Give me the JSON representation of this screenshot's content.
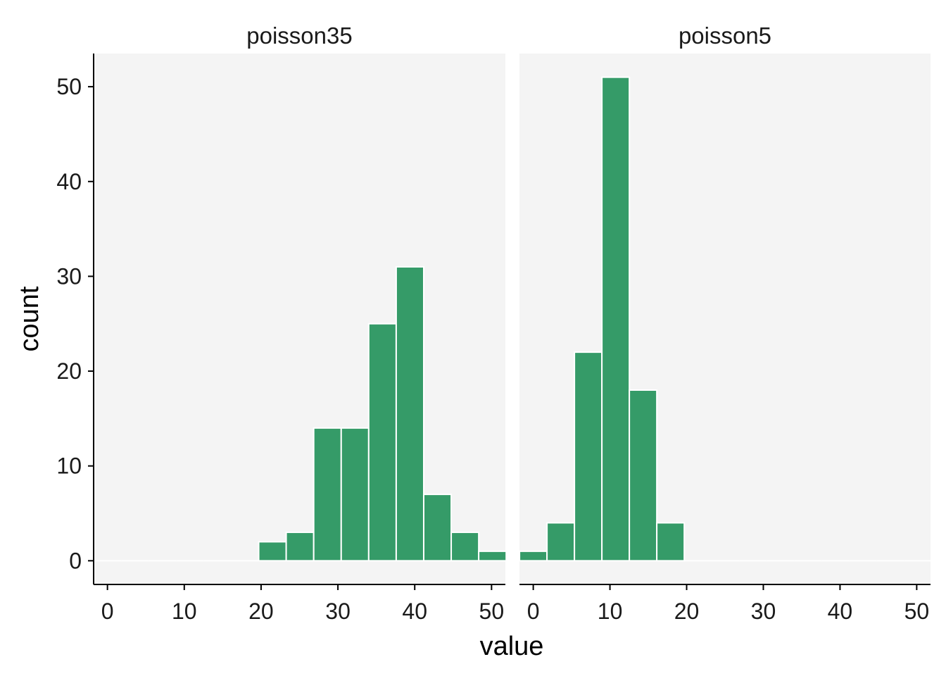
{
  "chart_data": {
    "type": "bar",
    "chart_kind": "histogram (faceted)",
    "xlabel": "value",
    "ylabel": "count",
    "xlim": [
      -1.8,
      51.8
    ],
    "ylim": [
      -2.5,
      53.5
    ],
    "x_ticks": [
      0,
      10,
      20,
      30,
      40,
      50
    ],
    "y_ticks": [
      0,
      10,
      20,
      30,
      40,
      50
    ],
    "bin_width": 3.58,
    "grid": false,
    "colors": {
      "bar_fill": "#359b68",
      "bar_outline": "#ffffff",
      "panel_background": "#f4f4f4"
    },
    "facets": [
      {
        "name": "poisson35",
        "bins": [
          {
            "x": 0.0,
            "count": 0
          },
          {
            "x": 3.58,
            "count": 0
          },
          {
            "x": 7.16,
            "count": 0
          },
          {
            "x": 10.74,
            "count": 0
          },
          {
            "x": 14.32,
            "count": 0
          },
          {
            "x": 17.9,
            "count": 0
          },
          {
            "x": 21.48,
            "count": 2
          },
          {
            "x": 25.06,
            "count": 3
          },
          {
            "x": 28.64,
            "count": 14
          },
          {
            "x": 32.22,
            "count": 14
          },
          {
            "x": 35.8,
            "count": 25
          },
          {
            "x": 39.38,
            "count": 31
          },
          {
            "x": 42.96,
            "count": 7
          },
          {
            "x": 46.54,
            "count": 3
          },
          {
            "x": 50.12,
            "count": 1
          }
        ]
      },
      {
        "name": "poisson5",
        "bins": [
          {
            "x": 0.0,
            "count": 1
          },
          {
            "x": 3.58,
            "count": 4
          },
          {
            "x": 7.16,
            "count": 22
          },
          {
            "x": 10.74,
            "count": 51
          },
          {
            "x": 14.32,
            "count": 18
          },
          {
            "x": 17.9,
            "count": 4
          },
          {
            "x": 21.48,
            "count": 0
          },
          {
            "x": 25.06,
            "count": 0
          },
          {
            "x": 28.64,
            "count": 0
          },
          {
            "x": 32.22,
            "count": 0
          },
          {
            "x": 35.8,
            "count": 0
          },
          {
            "x": 39.38,
            "count": 0
          },
          {
            "x": 42.96,
            "count": 0
          },
          {
            "x": 46.54,
            "count": 0
          },
          {
            "x": 50.12,
            "count": 0
          }
        ]
      }
    ]
  }
}
